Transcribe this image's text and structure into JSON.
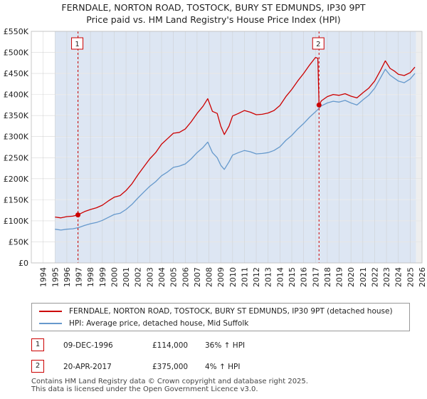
{
  "title_line1": "FERNDALE, NORTON ROAD, TOSTOCK, BURY ST EDMUNDS, IP30 9PT",
  "title_line2": "Price paid vs. HM Land Registry's House Price Index (HPI)",
  "colors": {
    "property": "#cc0000",
    "hpi": "#6699cc",
    "shade": "#dde6f3",
    "marker_box": "#cc0000"
  },
  "chart_data": {
    "type": "line",
    "title": "",
    "xlabel": "",
    "ylabel": "",
    "xlim": [
      1993,
      2026
    ],
    "ylim": [
      0,
      550000
    ],
    "x_ticks": [
      1994,
      1995,
      1996,
      1997,
      1998,
      1999,
      2000,
      2001,
      2002,
      2003,
      2004,
      2005,
      2006,
      2007,
      2008,
      2009,
      2010,
      2011,
      2012,
      2013,
      2014,
      2015,
      2016,
      2017,
      2018,
      2019,
      2020,
      2021,
      2022,
      2023,
      2024,
      2025,
      2026
    ],
    "y_ticks": [
      {
        "value": 0,
        "label": "£0"
      },
      {
        "value": 50000,
        "label": "£50K"
      },
      {
        "value": 100000,
        "label": "£100K"
      },
      {
        "value": 150000,
        "label": "£150K"
      },
      {
        "value": 200000,
        "label": "£200K"
      },
      {
        "value": 250000,
        "label": "£250K"
      },
      {
        "value": 300000,
        "label": "£300K"
      },
      {
        "value": 350000,
        "label": "£350K"
      },
      {
        "value": 400000,
        "label": "£400K"
      },
      {
        "value": 450000,
        "label": "£450K"
      },
      {
        "value": 500000,
        "label": "£500K"
      },
      {
        "value": 550000,
        "label": "£550K"
      }
    ],
    "grid": true,
    "data_range": [
      1995.0,
      2025.5
    ],
    "series": [
      {
        "name": "FERNDALE, NORTON ROAD, TOSTOCK, BURY ST EDMUNDS, IP30 9PT (detached house)",
        "color": "#cc0000",
        "x": [
          1995.0,
          1995.5,
          1996.0,
          1996.5,
          1996.94,
          1997.5,
          1998.0,
          1998.5,
          1999.0,
          1999.5,
          2000.0,
          2000.5,
          2001.0,
          2001.5,
          2002.0,
          2002.5,
          2003.0,
          2003.5,
          2004.0,
          2004.5,
          2005.0,
          2005.5,
          2006.0,
          2006.5,
          2007.0,
          2007.5,
          2007.9,
          2008.3,
          2008.7,
          2009.0,
          2009.3,
          2009.7,
          2010.0,
          2010.5,
          2011.0,
          2011.5,
          2012.0,
          2012.5,
          2013.0,
          2013.5,
          2014.0,
          2014.5,
          2015.0,
          2015.5,
          2016.0,
          2016.5,
          2017.0,
          2017.2,
          2017.3,
          2017.5,
          2018.0,
          2018.5,
          2019.0,
          2019.5,
          2020.0,
          2020.5,
          2021.0,
          2021.5,
          2022.0,
          2022.5,
          2022.9,
          2023.3,
          2023.7,
          2024.0,
          2024.5,
          2025.0,
          2025.4
        ],
        "y": [
          109000,
          107000,
          110000,
          111000,
          114000,
          122000,
          127000,
          131000,
          137000,
          147000,
          156000,
          160000,
          172000,
          188000,
          209000,
          228000,
          247000,
          262000,
          282000,
          295000,
          308000,
          310000,
          318000,
          335000,
          355000,
          372000,
          390000,
          360000,
          355000,
          325000,
          305000,
          325000,
          349000,
          355000,
          362000,
          358000,
          352000,
          353000,
          356000,
          362000,
          374000,
          395000,
          412000,
          432000,
          450000,
          470000,
          488000,
          486000,
          375000,
          385000,
          395000,
          400000,
          398000,
          402000,
          396000,
          392000,
          404000,
          415000,
          432000,
          458000,
          480000,
          462000,
          455000,
          448000,
          445000,
          452000,
          465000
        ]
      },
      {
        "name": "HPI: Average price, detached house, Mid Suffolk",
        "color": "#6699cc",
        "x": [
          1995.0,
          1995.5,
          1996.0,
          1996.5,
          1997.0,
          1997.5,
          1998.0,
          1998.5,
          1999.0,
          1999.5,
          2000.0,
          2000.5,
          2001.0,
          2001.5,
          2002.0,
          2002.5,
          2003.0,
          2003.5,
          2004.0,
          2004.5,
          2005.0,
          2005.5,
          2006.0,
          2006.5,
          2007.0,
          2007.5,
          2007.9,
          2008.3,
          2008.7,
          2009.0,
          2009.3,
          2009.7,
          2010.0,
          2010.5,
          2011.0,
          2011.5,
          2012.0,
          2012.5,
          2013.0,
          2013.5,
          2014.0,
          2014.5,
          2015.0,
          2015.5,
          2016.0,
          2016.5,
          2017.0,
          2017.5,
          2018.0,
          2018.5,
          2019.0,
          2019.5,
          2020.0,
          2020.5,
          2021.0,
          2021.5,
          2022.0,
          2022.5,
          2022.9,
          2023.3,
          2023.7,
          2024.0,
          2024.5,
          2025.0,
          2025.4
        ],
        "y": [
          80000,
          78000,
          80000,
          81000,
          84000,
          89000,
          93000,
          96000,
          101000,
          108000,
          115000,
          118000,
          127000,
          139000,
          154000,
          168000,
          182000,
          193000,
          207000,
          216000,
          227000,
          230000,
          235000,
          247000,
          262000,
          274000,
          287000,
          262000,
          250000,
          232000,
          222000,
          240000,
          256000,
          262000,
          267000,
          264000,
          259000,
          260000,
          262000,
          267000,
          276000,
          291000,
          303000,
          318000,
          331000,
          346000,
          359000,
          373000,
          380000,
          384000,
          382000,
          386000,
          380000,
          375000,
          387000,
          398000,
          415000,
          440000,
          460000,
          446000,
          438000,
          432000,
          428000,
          437000,
          450000
        ]
      }
    ],
    "sales": [
      {
        "label": "1",
        "x": 1996.94,
        "y": 114000
      },
      {
        "label": "2",
        "x": 2017.3,
        "y": 375000
      }
    ]
  },
  "legend": {
    "property": "FERNDALE, NORTON ROAD, TOSTOCK, BURY ST EDMUNDS, IP30 9PT (detached house)",
    "hpi": "HPI: Average price, detached house, Mid Suffolk"
  },
  "transactions": [
    {
      "label": "1",
      "date": "09-DEC-1996",
      "price": "£114,000",
      "hpi_change": "36% ↑ HPI"
    },
    {
      "label": "2",
      "date": "20-APR-2017",
      "price": "£375,000",
      "hpi_change": "4% ↑ HPI"
    }
  ],
  "footer_line1": "Contains HM Land Registry data © Crown copyright and database right 2025.",
  "footer_line2": "This data is licensed under the Open Government Licence v3.0."
}
